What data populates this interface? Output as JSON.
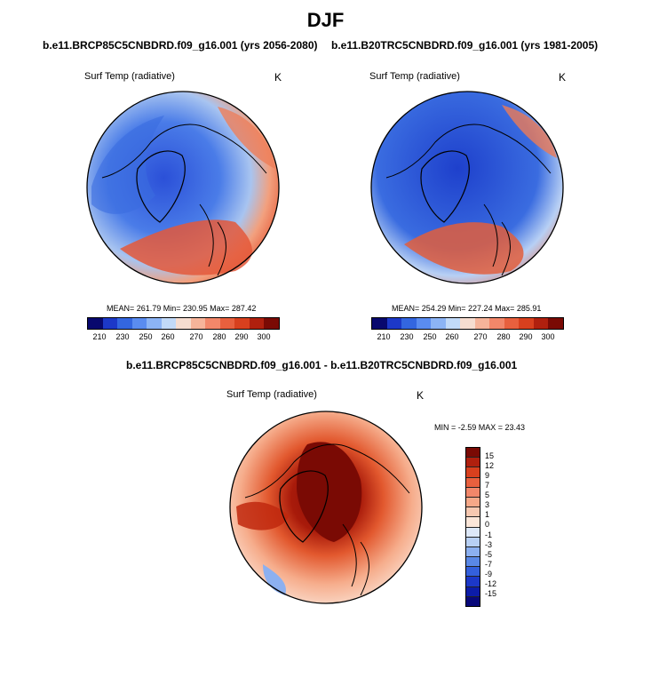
{
  "figure": {
    "title": "DJF",
    "panels": [
      {
        "case_label": "b.e11.BRCP85C5CNBDRD.f09_g16.001 (yrs 2056-2080)",
        "variable": "Surf Temp (radiative)",
        "units": "K",
        "stats": "MEAN= 261.79  Min= 230.95  Max= 287.42"
      },
      {
        "case_label": "b.e11.B20TRC5CNBDRD.f09_g16.001 (yrs 1981-2005)",
        "variable": "Surf Temp (radiative)",
        "units": "K",
        "stats": "MEAN= 254.29  Min= 227.24  Max= 285.91"
      }
    ],
    "difference": {
      "title": "b.e11.BRCP85C5CNBDRD.f09_g16.001 - b.e11.B20TRC5CNBDRD.f09_g16.001",
      "variable": "Surf Temp (radiative)",
      "units": "K",
      "stats": "MIN =  -2.59 MAX =  23.43"
    },
    "colorbar_abs": {
      "tick_labels": [
        "210",
        "230",
        "250",
        "260",
        "270",
        "280",
        "290",
        "300"
      ],
      "colors": [
        "#08086e",
        "#1c38c8",
        "#3366e0",
        "#5a8cf0",
        "#8cb4f5",
        "#c2daf8",
        "#f6ddd0",
        "#f6b49a",
        "#f2876a",
        "#e8603e",
        "#d8401e",
        "#b0200e",
        "#7a0a04"
      ]
    },
    "colorbar_diff": {
      "tick_labels": [
        "15",
        "12",
        "9",
        "7",
        "5",
        "3",
        "1",
        "0",
        "-1",
        "-3",
        "-5",
        "-7",
        "-9",
        "-12",
        "-15"
      ],
      "colors": [
        "#7a0a04",
        "#b0200e",
        "#d8401e",
        "#e8603e",
        "#f2876a",
        "#f6a888",
        "#f7c8b0",
        "#fbe6d8",
        "#dde8f8",
        "#b8d0f4",
        "#8cb0f0",
        "#5a88e6",
        "#3460dc",
        "#1c38c8",
        "#0c1ca8",
        "#08087a"
      ]
    }
  }
}
